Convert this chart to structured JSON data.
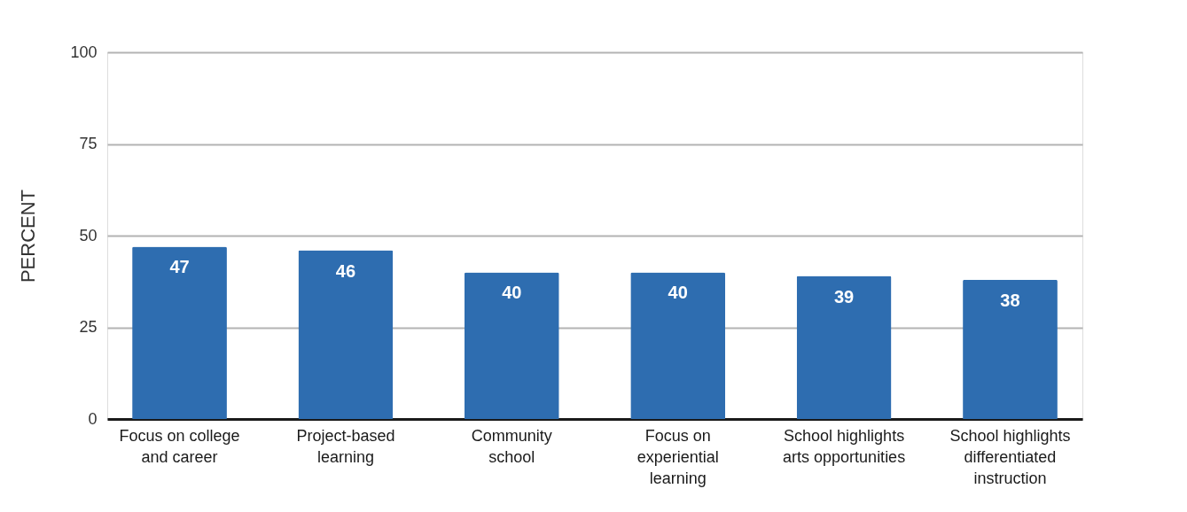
{
  "chart_data": {
    "type": "bar",
    "ylabel": "PERCENT",
    "categories": [
      "Focus on college\nand career",
      "Project-based\nlearning",
      "Community\nschool",
      "Focus on\nexperiential\nlearning",
      "School highlights\narts opportunities",
      "School highlights\ndifferentiated\ninstruction"
    ],
    "values": [
      47,
      46,
      40,
      40,
      39,
      38
    ],
    "color": "#2e6db0",
    "ylim": [
      0,
      100
    ],
    "yticks": [
      0,
      25,
      50,
      75,
      100
    ],
    "grid": "y",
    "data_labels": true
  }
}
